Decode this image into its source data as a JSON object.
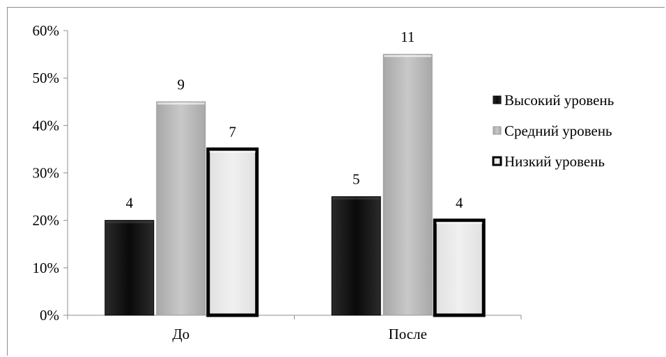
{
  "chart_data": {
    "type": "bar",
    "categories": [
      "До",
      "После"
    ],
    "series": [
      {
        "name": "Высокий уровень",
        "values": [
          20,
          25
        ],
        "labels": [
          "4",
          "5"
        ],
        "color": "#111111"
      },
      {
        "name": "Средний уровень",
        "values": [
          45,
          55
        ],
        "labels": [
          "9",
          "11"
        ],
        "color": "#bfbfbf"
      },
      {
        "name": "Низкий уровень",
        "values": [
          35,
          20
        ],
        "labels": [
          "7",
          "4"
        ],
        "color": "#e8e8e8"
      }
    ],
    "y_ticks": [
      "0%",
      "10%",
      "20%",
      "30%",
      "40%",
      "50%",
      "60%"
    ],
    "ylim": [
      0,
      60
    ],
    "y_unit": "%",
    "legend_position": "right",
    "grid": false,
    "title": "",
    "xlabel": "",
    "ylabel": ""
  }
}
